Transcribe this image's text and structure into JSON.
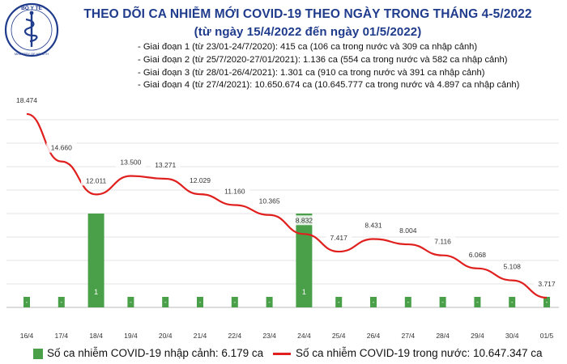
{
  "logo": {
    "text": "BỘ Y TẾ",
    "subtext": "MINISTRY OF HEALTH"
  },
  "title": "THEO DÕI CA NHIỄM MỚI COVID-19 THEO NGÀY TRONG THÁNG 4-5/2022",
  "subtitle": "(từ ngày 15/4/2022 đến ngày 01/5/2022)",
  "phases": [
    "Giai đoạn 1 (từ 23/01-24/7/2020): 415 ca (106 ca trong nước và 309 ca nhập cảnh)",
    "Giai đoạn 2 (từ 25/7/2020-27/01/2021): 1.136 ca (554 ca trong nước và 582 ca nhập cảnh)",
    "Giai đoạn 3 (từ 28/01-26/4/2021): 1.301 ca (910 ca trong nước và 391 ca nhập cảnh)",
    "Giai đoạn 4 (từ 27/4/2021): 10.650.674 ca (10.645.777 ca trong nước và 4.897 ca nhập cảnh)"
  ],
  "legend": {
    "bar_label": "Số ca nhiễm COVID-19 nhập cảnh: 6.179 ca",
    "line_label": "Số ca nhiễm COVID-19 trong nước: 10.647.347 ca"
  },
  "colors": {
    "bar": "#4a9f49",
    "line": "#e0201e",
    "title": "#1f3b8c",
    "grid": "#e3e3e3",
    "axis": "#c8c8c8"
  },
  "chart_data": {
    "type": "bar+line",
    "categories": [
      "16/4",
      "17/4",
      "18/4",
      "19/4",
      "20/4",
      "21/4",
      "22/4",
      "23/4",
      "24/4",
      "25/4",
      "26/4",
      "27/4",
      "28/4",
      "29/4",
      "30/4",
      "01/5"
    ],
    "series": [
      {
        "name": "Số ca nhiễm COVID-19 trong nước: 10.647.347 ca",
        "type": "line",
        "values": [
          18474,
          14660,
          12011,
          13500,
          13271,
          12029,
          11160,
          10365,
          8832,
          7417,
          8431,
          8004,
          7116,
          6068,
          5108,
          3717
        ],
        "labels": [
          "18.474",
          "14.660",
          "12.011",
          "13.500",
          "13.271",
          "12.029",
          "11.160",
          "10.365",
          "8.832",
          "7.417",
          "8.431",
          "8.004",
          "7.116",
          "6.068",
          "5.108",
          "3.717"
        ]
      },
      {
        "name": "Số ca nhiễm COVID-19 nhập cảnh: 6.179 ca",
        "type": "bar",
        "values": [
          0,
          0,
          1,
          0,
          0,
          0,
          0,
          0,
          1,
          0,
          0,
          0,
          0,
          0,
          0,
          0
        ],
        "labels": [
          "-",
          "-",
          "1",
          "-",
          "-",
          "-",
          "-",
          "-",
          "1",
          "-",
          "-",
          "-",
          "-",
          "-",
          "-",
          "-"
        ]
      }
    ],
    "bar_axis_max": 2,
    "grid": true,
    "legend_position": "bottom"
  }
}
